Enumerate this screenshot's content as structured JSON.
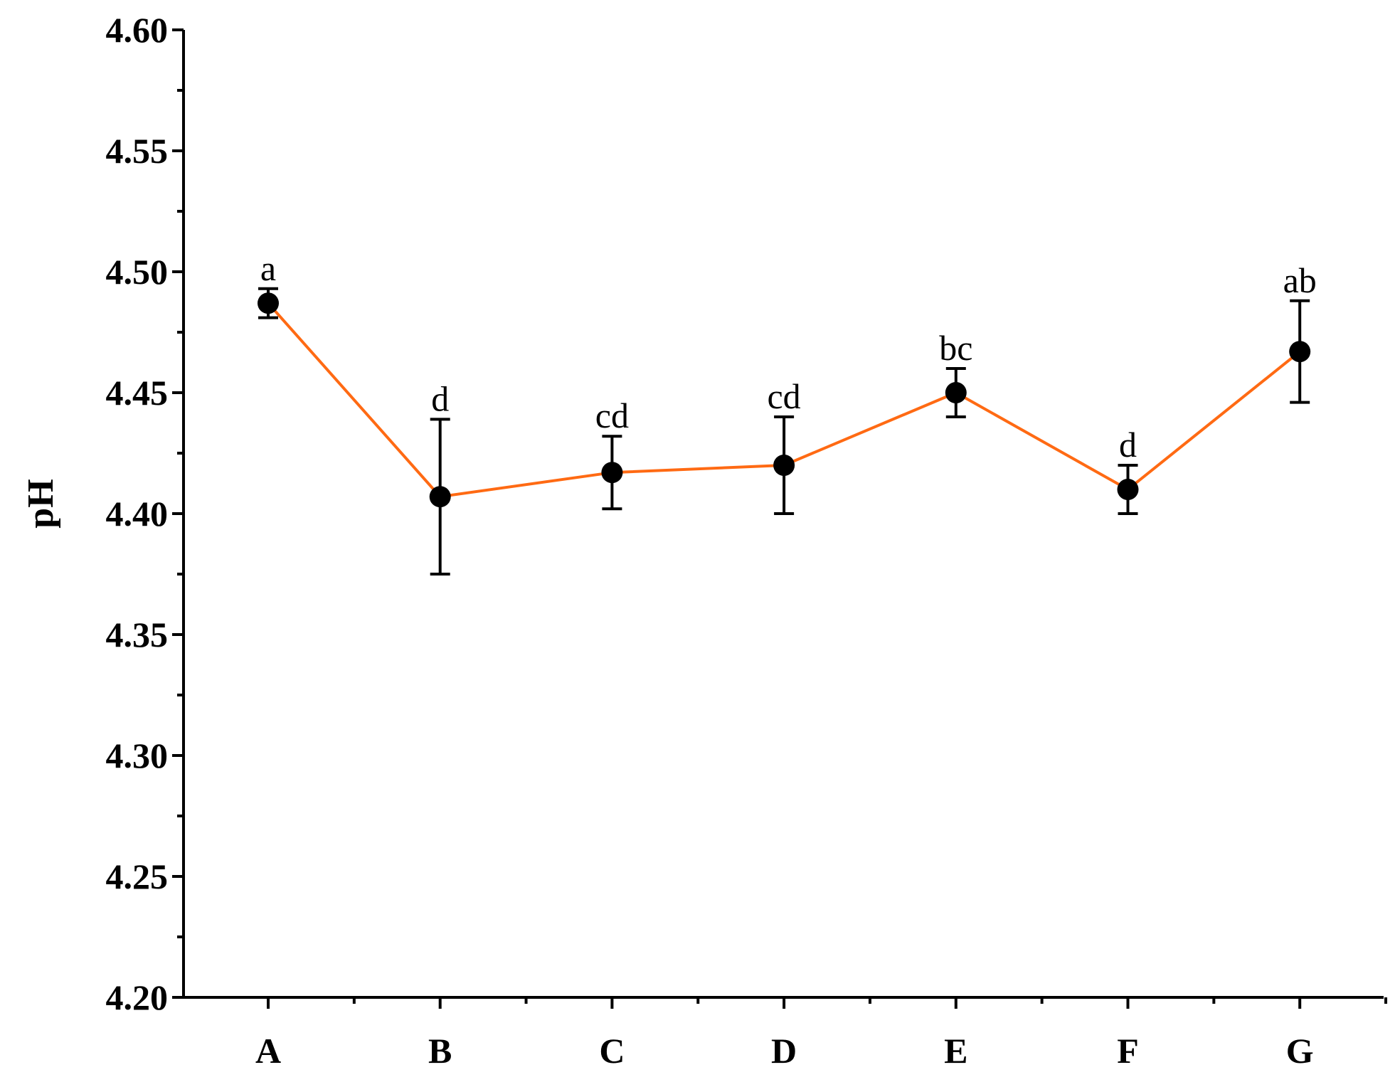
{
  "chart_data": {
    "type": "line",
    "title": "",
    "xlabel": "",
    "ylabel": "pH",
    "categories": [
      "A",
      "B",
      "C",
      "D",
      "E",
      "F",
      "G"
    ],
    "series": [
      {
        "values": [
          4.487,
          4.407,
          4.417,
          4.42,
          4.45,
          4.41,
          4.467
        ],
        "error_bars": [
          0.006,
          0.032,
          0.015,
          0.02,
          0.01,
          0.01,
          0.021
        ],
        "significance_labels": [
          "a",
          "d",
          "cd",
          "cd",
          "bc",
          "d",
          "ab"
        ],
        "line_color": "#ff6a13",
        "marker_color": "#000000"
      }
    ],
    "ylim": [
      4.2,
      4.6
    ],
    "yticks": [
      "4.20",
      "4.25",
      "4.30",
      "4.35",
      "4.40",
      "4.45",
      "4.50",
      "4.55",
      "4.60"
    ],
    "grid": false,
    "legend": "none"
  }
}
